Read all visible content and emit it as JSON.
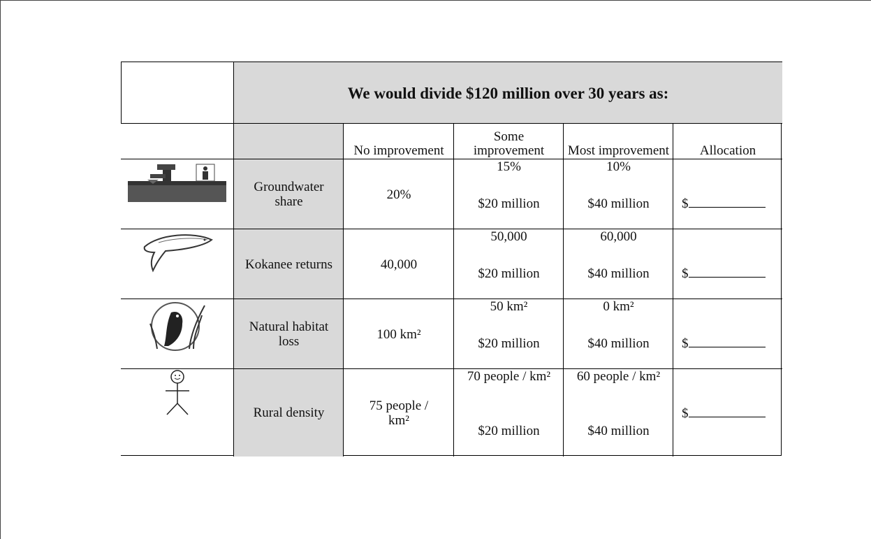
{
  "table": {
    "title": "We would divide $120 million over 30 years as:",
    "columns": [
      "No improvement",
      "Some improvement",
      "Most improvement",
      "Allocation"
    ],
    "rows": [
      {
        "label": "Groundwater share",
        "no": "20%",
        "some": {
          "level": "15%",
          "cost": "$20 million"
        },
        "most": {
          "level": "10%",
          "cost": "$40 million"
        },
        "allocation": "$"
      },
      {
        "label": "Kokanee returns",
        "no": "40,000",
        "some": {
          "level": "50,000",
          "cost": "$20 million"
        },
        "most": {
          "level": "60,000",
          "cost": "$40 million"
        },
        "allocation": "$"
      },
      {
        "label": "Natural habitat loss",
        "no": "100 km²",
        "some": {
          "level": "50 km²",
          "cost": "$20 million"
        },
        "most": {
          "level": "0 km²",
          "cost": "$40 million"
        },
        "allocation": "$"
      },
      {
        "label": "Rural density",
        "no": "75 people / km²",
        "some": {
          "level": "70 people / km²",
          "cost": "$20 million"
        },
        "most": {
          "level": "60 people / km²",
          "cost": "$40 million"
        },
        "allocation": "$"
      }
    ]
  }
}
